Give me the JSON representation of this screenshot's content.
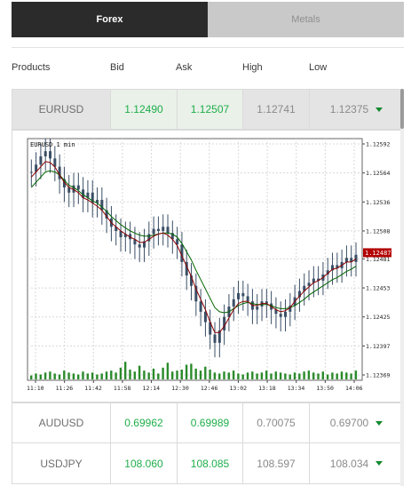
{
  "tabs": [
    {
      "label": "Forex",
      "active": true
    },
    {
      "label": "Metals",
      "active": false
    }
  ],
  "columns": {
    "products": "Products",
    "bid": "Bid",
    "ask": "Ask",
    "high": "High",
    "low": "Low"
  },
  "rows": [
    {
      "product": "EURUSD",
      "bid": "1.12490",
      "ask": "1.12507",
      "high": "1.12741",
      "low": "1.12375",
      "trend": "down"
    },
    {
      "product": "AUDUSD",
      "bid": "0.69962",
      "ask": "0.69989",
      "high": "0.70075",
      "low": "0.69700",
      "trend": "down"
    },
    {
      "product": "USDJPY",
      "bid": "108.060",
      "ask": "108.085",
      "high": "108.597",
      "low": "108.034",
      "trend": "down"
    }
  ],
  "colors": {
    "green": "#1fae4a",
    "arrow": "#138a2f",
    "price_tag": "#b30000"
  },
  "chart_data": {
    "type": "candlestick",
    "title": "EURUSD 1 min",
    "x_ticks": [
      "11:10",
      "11:26",
      "11:42",
      "11:58",
      "12:14",
      "12:30",
      "12:46",
      "13:02",
      "13:18",
      "13:34",
      "13:50",
      "14:06"
    ],
    "y_ticks": [
      "1.12592",
      "1.12564",
      "1.12536",
      "1.12508",
      "1.12481",
      "1.12453",
      "1.12425",
      "1.12397",
      "1.12369"
    ],
    "ylim": [
      1.12369,
      1.12592
    ],
    "current_price": "1.12487",
    "grid": true,
    "close_series": [
      1.12565,
      1.12572,
      1.1258,
      1.12585,
      1.12578,
      1.1257,
      1.12558,
      1.1255,
      1.12545,
      1.12552,
      1.12548,
      1.1254,
      1.12545,
      1.12535,
      1.12538,
      1.12528,
      1.1252,
      1.12512,
      1.12508,
      1.12502,
      1.12505,
      1.125,
      1.12495,
      1.12492,
      1.12498,
      1.12505,
      1.1251,
      1.12508,
      1.12512,
      1.12506,
      1.125,
      1.12495,
      1.12478,
      1.12465,
      1.12455,
      1.1244,
      1.1243,
      1.1242,
      1.12408,
      1.124,
      1.12412,
      1.12425,
      1.12435,
      1.12442,
      1.12448,
      1.12445,
      1.1244,
      1.12432,
      1.12435,
      1.1244,
      1.12438,
      1.12432,
      1.12428,
      1.12425,
      1.1243,
      1.12436,
      1.12444,
      1.1245,
      1.12455,
      1.12458,
      1.12462,
      1.1246,
      1.12466,
      1.1247,
      1.12475,
      1.12472,
      1.12478,
      1.12482,
      1.12478,
      1.12485
    ],
    "volume_series": [
      4,
      6,
      5,
      7,
      8,
      6,
      5,
      9,
      7,
      6,
      5,
      8,
      6,
      7,
      5,
      6,
      8,
      9,
      7,
      12,
      18,
      10,
      8,
      14,
      9,
      7,
      11,
      6,
      12,
      17,
      8,
      9,
      10,
      15,
      16,
      11,
      9,
      13,
      10,
      7,
      6,
      8,
      7,
      9,
      6,
      5,
      7,
      8,
      6,
      7,
      9,
      6,
      8,
      7,
      6,
      5,
      7,
      6,
      8,
      9,
      7,
      6,
      8,
      5,
      7,
      6,
      8,
      7,
      6,
      9
    ],
    "ma_red": [
      1.1256,
      1.12565,
      1.1257,
      1.12575,
      1.12574,
      1.1257,
      1.12562,
      1.12555,
      1.1255,
      1.12548,
      1.12545,
      1.1254,
      1.12538,
      1.12535,
      1.12532,
      1.12528,
      1.12522,
      1.12516,
      1.12512,
      1.12508,
      1.12505,
      1.12502,
      1.125,
      1.12497,
      1.12497,
      1.125,
      1.12503,
      1.12505,
      1.12506,
      1.12504,
      1.125,
      1.12494,
      1.12484,
      1.12474,
      1.12464,
      1.12452,
      1.12442,
      1.12432,
      1.1242,
      1.1241,
      1.1241,
      1.12416,
      1.12424,
      1.12432,
      1.12438,
      1.1244,
      1.1244,
      1.12436,
      1.12436,
      1.12438,
      1.12438,
      1.12435,
      1.12432,
      1.1243,
      1.12431,
      1.12434,
      1.1244,
      1.12445,
      1.1245,
      1.12454,
      1.12458,
      1.1246,
      1.12463,
      1.12467,
      1.12471,
      1.12472,
      1.12475,
      1.12478,
      1.12478,
      1.12481
    ],
    "ma_green": [
      1.1255,
      1.12555,
      1.1256,
      1.12565,
      1.12566,
      1.12565,
      1.12562,
      1.12557,
      1.12552,
      1.1255,
      1.12547,
      1.12543,
      1.1254,
      1.12537,
      1.12535,
      1.12531,
      1.12527,
      1.12522,
      1.12518,
      1.12514,
      1.12511,
      1.12508,
      1.12506,
      1.12504,
      1.12503,
      1.12503,
      1.12504,
      1.12505,
      1.12506,
      1.12506,
      1.12505,
      1.12502,
      1.12496,
      1.12488,
      1.1248,
      1.1247,
      1.12461,
      1.12452,
      1.12443,
      1.12434,
      1.1243,
      1.12429,
      1.1243,
      1.12433,
      1.12436,
      1.12438,
      1.12439,
      1.12438,
      1.12437,
      1.12437,
      1.12437,
      1.12436,
      1.12434,
      1.12433,
      1.12433,
      1.12434,
      1.12436,
      1.12439,
      1.12442,
      1.12446,
      1.12449,
      1.12452,
      1.12455,
      1.12458,
      1.12461,
      1.12463,
      1.12466,
      1.12469,
      1.12471,
      1.12474
    ]
  }
}
